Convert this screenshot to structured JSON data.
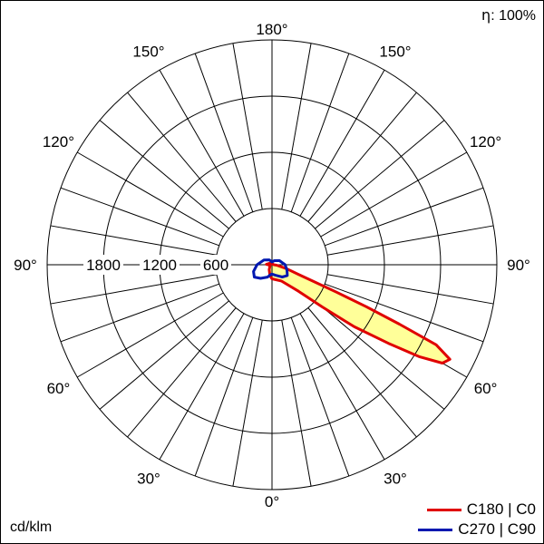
{
  "header": {
    "efficiency_symbol": "η",
    "efficiency_value": ": 100%"
  },
  "unit_label": "cd/klm",
  "chart_data": {
    "type": "polar",
    "angle_unit": "deg",
    "radial_max": 2400,
    "radial_rings": [
      600,
      1200,
      1800,
      2400
    ],
    "radial_tick_labels": [
      "1800",
      "1200",
      "600"
    ],
    "angle_spoke_step_deg": 10,
    "angle_tick_labels": [
      {
        "text": "180°",
        "angle": 180,
        "side": "top"
      },
      {
        "text": "150°",
        "angle": 150,
        "side": "left"
      },
      {
        "text": "150°",
        "angle": 150,
        "side": "right"
      },
      {
        "text": "120°",
        "angle": 120,
        "side": "left"
      },
      {
        "text": "120°",
        "angle": 120,
        "side": "right"
      },
      {
        "text": "90°",
        "angle": 90,
        "side": "left"
      },
      {
        "text": "90°",
        "angle": 90,
        "side": "right"
      },
      {
        "text": "60°",
        "angle": 60,
        "side": "left"
      },
      {
        "text": "60°",
        "angle": 60,
        "side": "right"
      },
      {
        "text": "30°",
        "angle": 30,
        "side": "left"
      },
      {
        "text": "30°",
        "angle": 30,
        "side": "right"
      },
      {
        "text": "0°",
        "angle": 0,
        "side": "bottom"
      }
    ],
    "series": [
      {
        "name": "C180 | C0",
        "color": "#e00000",
        "fill": "#ffff99",
        "points": [
          [
            0,
            150
          ],
          [
            30,
            200
          ],
          [
            45,
            400
          ],
          [
            50,
            700
          ],
          [
            53,
            1100
          ],
          [
            56,
            1500
          ],
          [
            58,
            1850
          ],
          [
            60,
            2100
          ],
          [
            62,
            2150
          ],
          [
            64,
            1950
          ],
          [
            65,
            1500
          ],
          [
            66,
            1100
          ],
          [
            67,
            750
          ],
          [
            68,
            500
          ],
          [
            70,
            300
          ],
          [
            75,
            160
          ],
          [
            85,
            50
          ],
          [
            90,
            20
          ],
          [
            100,
            15
          ],
          [
            140,
            10
          ],
          [
            180,
            8
          ],
          [
            -150,
            10
          ],
          [
            -120,
            30
          ],
          [
            -95,
            60
          ],
          [
            -88,
            40
          ],
          [
            -80,
            30
          ],
          [
            -60,
            25
          ],
          [
            -30,
            60
          ],
          [
            -10,
            120
          ]
        ]
      },
      {
        "name": "C270 | C90",
        "color": "#0018b0",
        "fill": "none",
        "points": [
          [
            0,
            100
          ],
          [
            20,
            120
          ],
          [
            40,
            170
          ],
          [
            55,
            200
          ],
          [
            70,
            170
          ],
          [
            90,
            140
          ],
          [
            120,
            90
          ],
          [
            150,
            50
          ],
          [
            180,
            30
          ],
          [
            -150,
            60
          ],
          [
            -120,
            100
          ],
          [
            -90,
            160
          ],
          [
            -70,
            210
          ],
          [
            -55,
            230
          ],
          [
            -40,
            190
          ],
          [
            -20,
            140
          ],
          [
            -10,
            110
          ]
        ]
      }
    ]
  },
  "legend": [
    {
      "label": "C180 | C0",
      "color": "#e00000"
    },
    {
      "label": "C270 | C90",
      "color": "#0018b0"
    }
  ]
}
